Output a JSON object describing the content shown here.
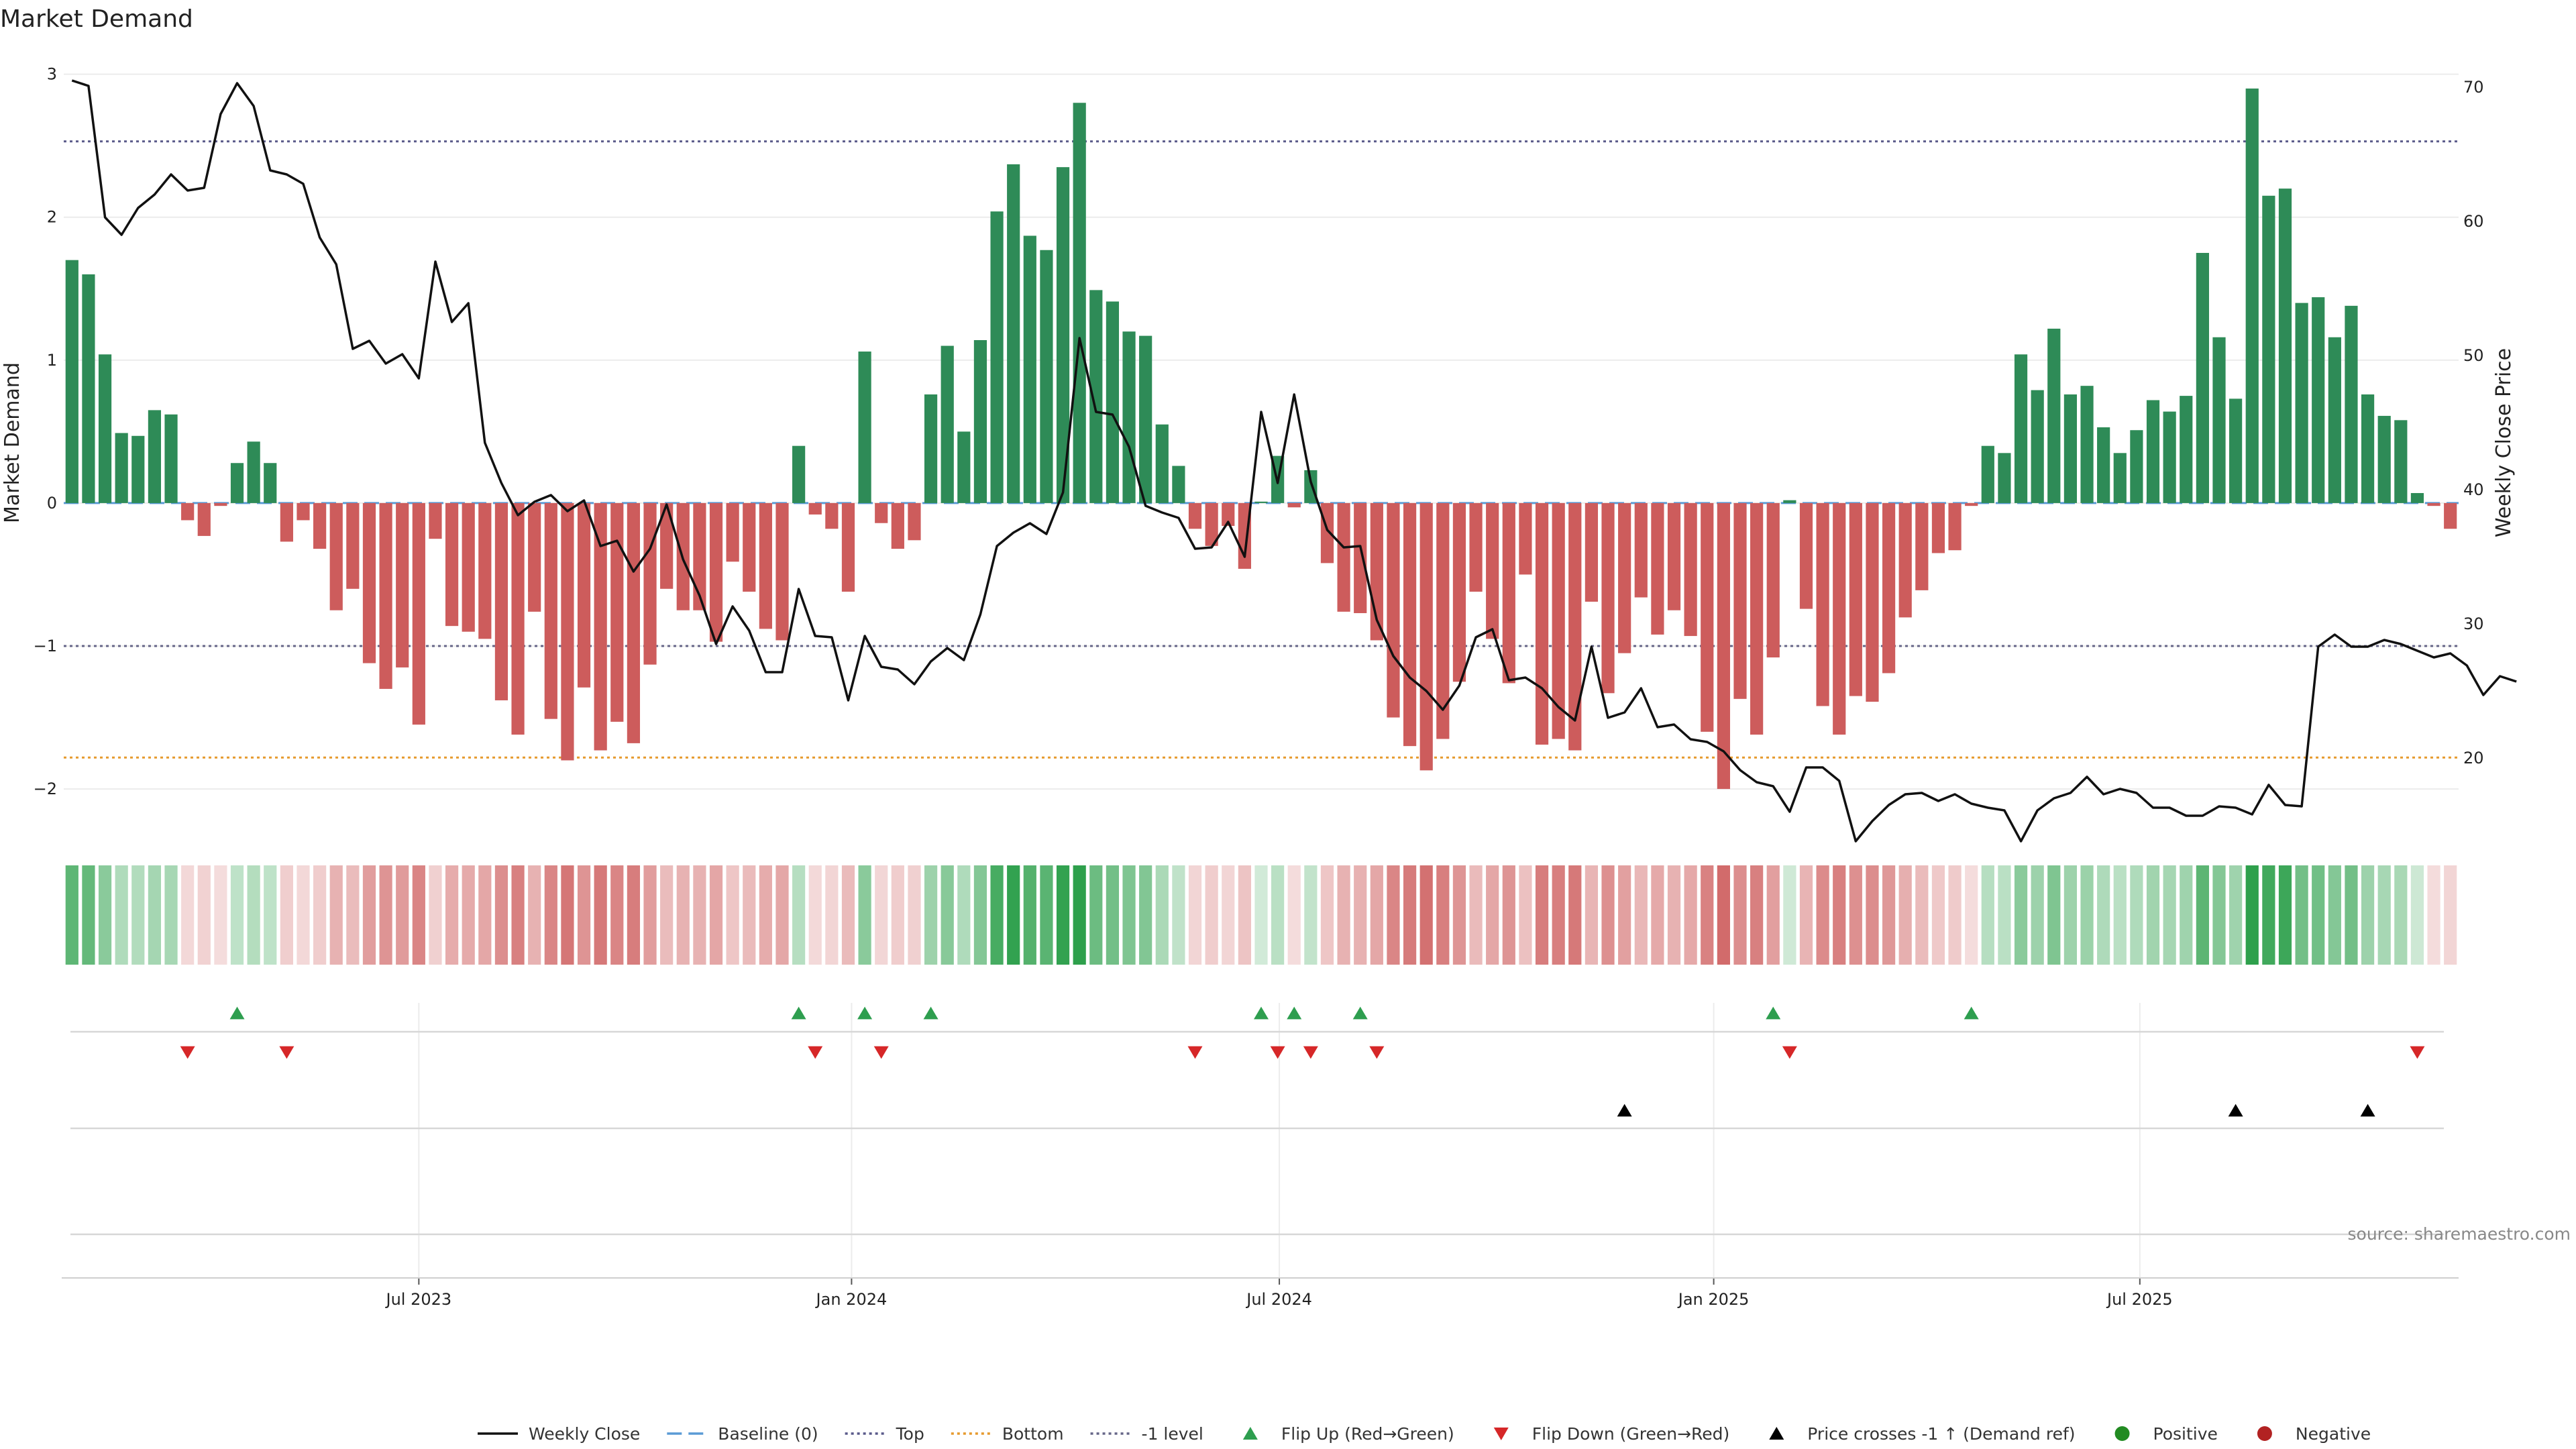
{
  "chart_data": {
    "type": "bar",
    "title": "Market Demand",
    "ylabel_left": "Market Demand",
    "ylabel_right": "Weekly Close Price",
    "ylim_left": [
      -2.3,
      3.05
    ],
    "ylim_right": [
      14.5,
      71.5
    ],
    "left_ticks": [
      {
        "value": 3,
        "label": "3"
      },
      {
        "value": 2,
        "label": "2"
      },
      {
        "value": 1,
        "label": "1"
      },
      {
        "value": 0,
        "label": "0"
      },
      {
        "value": -1,
        "label": "−1"
      },
      {
        "value": -2,
        "label": "−2"
      }
    ],
    "right_ticks": [
      {
        "value": 70,
        "label": "70"
      },
      {
        "value": 60,
        "label": "60"
      },
      {
        "value": 50,
        "label": "50"
      },
      {
        "value": 40,
        "label": "40"
      },
      {
        "value": 30,
        "label": "30"
      },
      {
        "value": 20,
        "label": "20"
      }
    ],
    "x_ticks": [
      {
        "index": 21.5,
        "label": "Jul 2023"
      },
      {
        "index": 47.7,
        "label": "Jan 2024"
      },
      {
        "index": 73.6,
        "label": "Jul 2024"
      },
      {
        "index": 99.9,
        "label": "Jan 2025"
      },
      {
        "index": 125.7,
        "label": "Jul 2025"
      }
    ],
    "reference_lines": {
      "top": 2.53,
      "bottom": -1.78,
      "minus_one": -1.0,
      "baseline": 0
    },
    "grid": true,
    "legend_position": "bottom",
    "colors": {
      "positive": "#2e8b57",
      "negative": "#cd5c5c",
      "price": "#111111",
      "top": "#5a5a8a",
      "bottom": "#e69a2e",
      "minus_one": "#666688",
      "baseline": "#5b9bd5",
      "flip_up": "#2e9e4f",
      "flip_down": "#d62728",
      "cross": "#000000",
      "pos_dot": "#228b22",
      "neg_dot": "#b22222"
    },
    "demand": [
      1.7,
      1.6,
      1.04,
      0.49,
      0.47,
      0.65,
      0.62,
      -0.12,
      -0.23,
      -0.02,
      0.28,
      0.43,
      0.28,
      -0.27,
      -0.12,
      -0.32,
      -0.75,
      -0.6,
      -1.12,
      -1.3,
      -1.15,
      -1.55,
      -0.25,
      -0.86,
      -0.9,
      -0.95,
      -1.38,
      -1.62,
      -0.76,
      -1.51,
      -1.8,
      -1.29,
      -1.73,
      -1.53,
      -1.68,
      -1.13,
      -0.6,
      -0.75,
      -0.75,
      -0.97,
      -0.41,
      -0.62,
      -0.88,
      -0.96,
      0.4,
      -0.08,
      -0.18,
      -0.62,
      1.06,
      -0.14,
      -0.32,
      -0.26,
      0.76,
      1.1,
      0.5,
      1.14,
      2.04,
      2.37,
      1.87,
      1.77,
      2.35,
      2.8,
      1.49,
      1.41,
      1.2,
      1.17,
      0.55,
      0.26,
      -0.18,
      -0.3,
      -0.16,
      -0.46,
      0.01,
      0.33,
      -0.03,
      0.23,
      -0.42,
      -0.76,
      -0.77,
      -0.96,
      -1.5,
      -1.7,
      -1.87,
      -1.65,
      -1.25,
      -0.62,
      -0.95,
      -1.26,
      -0.5,
      -1.69,
      -1.65,
      -1.73,
      -0.69,
      -1.33,
      -1.05,
      -0.66,
      -0.92,
      -0.75,
      -0.93,
      -1.6,
      -2.0,
      -1.37,
      -1.62,
      -1.08,
      0.02,
      -0.74,
      -1.42,
      -1.62,
      -1.35,
      -1.39,
      -1.19,
      -0.8,
      -0.61,
      -0.35,
      -0.33,
      -0.02,
      0.4,
      0.35,
      1.04,
      0.79,
      1.22,
      0.76,
      0.82,
      0.53,
      0.35,
      0.51,
      0.72,
      0.64,
      0.75,
      1.75,
      1.16,
      0.73,
      2.9,
      2.15,
      2.2,
      1.4,
      1.44,
      1.16,
      1.38,
      0.76,
      0.61,
      0.58,
      0.07,
      -0.02,
      -0.18
    ],
    "price": [
      70.5,
      70.1,
      60.3,
      59.0,
      61.0,
      62.0,
      63.5,
      62.3,
      62.5,
      68.0,
      70.3,
      68.6,
      63.8,
      63.5,
      62.8,
      58.8,
      56.8,
      50.5,
      51.1,
      49.4,
      50.1,
      48.3,
      57.0,
      52.5,
      53.9,
      43.5,
      40.5,
      38.1,
      39.1,
      39.6,
      38.4,
      39.2,
      35.8,
      36.2,
      33.9,
      35.6,
      38.9,
      34.8,
      32.1,
      28.5,
      31.3,
      29.5,
      26.4,
      26.4,
      32.6,
      29.1,
      29.0,
      24.3,
      29.1,
      26.8,
      26.6,
      25.5,
      27.2,
      28.2,
      27.3,
      30.7,
      35.8,
      36.8,
      37.5,
      36.7,
      39.8,
      51.3,
      45.8,
      45.6,
      43.2,
      38.8,
      38.3,
      37.9,
      35.6,
      35.7,
      37.6,
      35.0,
      45.8,
      40.5,
      47.1,
      40.6,
      37.0,
      35.7,
      35.8,
      30.3,
      27.6,
      26.0,
      25.0,
      23.6,
      25.4,
      29.0,
      29.6,
      25.8,
      26.0,
      25.2,
      23.8,
      22.8,
      28.3,
      23.0,
      23.4,
      25.2,
      22.3,
      22.5,
      21.4,
      21.2,
      20.5,
      19.1,
      18.2,
      17.9,
      16.0,
      19.3,
      19.3,
      18.3,
      13.8,
      15.3,
      16.5,
      17.3,
      17.4,
      16.8,
      17.3,
      16.6,
      16.3,
      16.1,
      13.8,
      16.1,
      17.0,
      17.4,
      18.6,
      17.3,
      17.7,
      17.4,
      16.3,
      16.3,
      15.7,
      15.7,
      16.4,
      16.3,
      15.8,
      18.0,
      16.5,
      16.4,
      28.3,
      29.2,
      28.3,
      28.3,
      28.8,
      28.5,
      28.0,
      27.5,
      27.8,
      26.9,
      24.7,
      26.1,
      25.7
    ],
    "flip_up_indices": [
      10,
      44,
      48,
      52,
      72,
      74,
      78,
      103,
      115
    ],
    "flip_down_indices": [
      7,
      13,
      45,
      49,
      68,
      73,
      75,
      79,
      104,
      142
    ],
    "price_cross_indices": [
      94,
      131,
      139
    ],
    "legend": [
      {
        "type": "line",
        "label": "Weekly Close"
      },
      {
        "type": "dashed",
        "label": "Baseline (0)"
      },
      {
        "type": "dotted-top",
        "label": "Top"
      },
      {
        "type": "dotted-bottom",
        "label": "Bottom"
      },
      {
        "type": "dotted-minus-one",
        "label": "-1 level"
      },
      {
        "type": "triangle-up-green",
        "label": "Flip Up (Red→Green)"
      },
      {
        "type": "triangle-down-red",
        "label": "Flip Down (Green→Red)"
      },
      {
        "type": "triangle-up-black",
        "label": "Price crosses -1 ↑ (Demand ref)"
      },
      {
        "type": "dot-green",
        "label": "Positive"
      },
      {
        "type": "dot-red",
        "label": "Negative"
      }
    ],
    "source": "source: sharemaestro.com"
  }
}
